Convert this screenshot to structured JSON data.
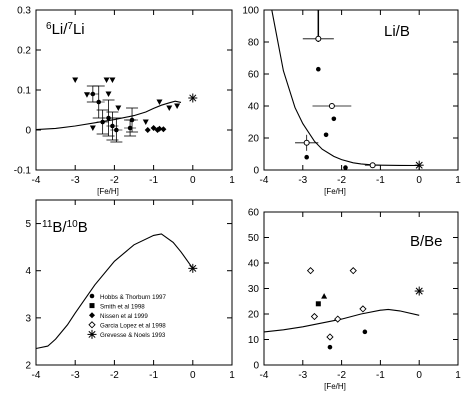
{
  "figure": {
    "background": "#ffffff",
    "ink": "#000000"
  },
  "chart_data": [
    {
      "type": "scatter",
      "id": "li6li7",
      "panel_label": "6Li/7Li",
      "label_parts": {
        "sup1": "6",
        "base1": "Li/",
        "sup2": "7",
        "base2": "Li"
      },
      "xlabel": "[Fe/H]",
      "ylabel": "",
      "xlim": [
        -4,
        1
      ],
      "ylim": [
        -0.1,
        0.3
      ],
      "xticks": [
        -4,
        -3,
        -2,
        -1,
        0,
        1
      ],
      "yticks": [
        -0.1,
        0,
        0.1,
        0.2,
        0.3
      ],
      "ytick_labels": [
        "-0.1",
        "0",
        "0.1",
        "0.2",
        "0.3"
      ],
      "grid": false,
      "curve": [
        [
          -4,
          0.001
        ],
        [
          -3.5,
          0.004
        ],
        [
          -3,
          0.01
        ],
        [
          -2.5,
          0.018
        ],
        [
          -2,
          0.026
        ],
        [
          -1.5,
          0.036
        ],
        [
          -1.2,
          0.045
        ],
        [
          -1,
          0.054
        ],
        [
          -0.8,
          0.062
        ],
        [
          -0.6,
          0.068
        ],
        [
          -0.45,
          0.072
        ],
        [
          -0.3,
          0.069
        ]
      ],
      "series": [
        {
          "marker": "triangle-down",
          "points": [
            [
              -3.0,
              0.125
            ],
            [
              -2.7,
              0.088
            ],
            [
              -2.55,
              0.005
            ],
            [
              -2.2,
              0.125
            ],
            [
              -2.15,
              0.09
            ],
            [
              -2.05,
              0.125
            ],
            [
              -1.9,
              0.055
            ],
            [
              -1.2,
              0.02
            ],
            [
              -0.85,
              0.07
            ],
            [
              -0.6,
              0.055
            ],
            [
              -0.4,
              0.06
            ]
          ]
        },
        {
          "marker": "dot-errorbar",
          "points": [
            [
              -2.55,
              0.09,
              0.02
            ],
            [
              -2.4,
              0.07,
              0.04
            ],
            [
              -2.3,
              0.02,
              0.03
            ],
            [
              -2.15,
              0.03,
              0.045
            ],
            [
              -2.05,
              0.01,
              0.035
            ],
            [
              -1.95,
              0.0,
              0.03
            ],
            [
              -1.6,
              0.005,
              0.02
            ],
            [
              -1.55,
              0.025,
              0.03
            ]
          ]
        },
        {
          "marker": "diamond",
          "points": [
            [
              -1.15,
              0.0
            ],
            [
              -1.0,
              0.005
            ],
            [
              -0.9,
              0.0
            ],
            [
              -0.85,
              0.003
            ],
            [
              -0.75,
              0.002
            ]
          ]
        },
        {
          "marker": "asterisk",
          "points": [
            [
              0.0,
              0.08
            ]
          ]
        }
      ]
    },
    {
      "type": "scatter",
      "id": "lib",
      "panel_label": "Li/B",
      "xlabel": "[Fe/H]",
      "ylabel": "",
      "xlim": [
        -4,
        1
      ],
      "ylim": [
        0,
        100
      ],
      "xticks": [
        -4,
        -3,
        -2,
        -1,
        0,
        1
      ],
      "yticks": [
        0,
        20,
        40,
        60,
        80,
        100
      ],
      "grid": false,
      "curve": [
        [
          -3.8,
          100
        ],
        [
          -3.5,
          62
        ],
        [
          -3.2,
          39
        ],
        [
          -3,
          29
        ],
        [
          -2.7,
          18
        ],
        [
          -2.5,
          13
        ],
        [
          -2.2,
          8.5
        ],
        [
          -2,
          6.5
        ],
        [
          -1.7,
          4.5
        ],
        [
          -1.5,
          3.8
        ],
        [
          -1.2,
          3.2
        ],
        [
          -1,
          3.0
        ],
        [
          -0.5,
          2.9
        ],
        [
          0,
          2.8
        ]
      ],
      "series": [
        {
          "marker": "open-circle-errorbar",
          "points": [
            [
              -2.9,
              17,
              3,
              5
            ],
            [
              -2.6,
              82,
              4,
              2
            ],
            [
              -2.25,
              40,
              5,
              1.5
            ],
            [
              -1.2,
              3,
              2,
              1
            ]
          ]
        },
        {
          "marker": "dot",
          "points": [
            [
              -2.9,
              8
            ],
            [
              -2.6,
              63
            ],
            [
              -2.4,
              22
            ],
            [
              -2.2,
              32
            ],
            [
              -1.9,
              1.5
            ]
          ]
        },
        {
          "marker": "asterisk",
          "points": [
            [
              0.0,
              3
            ]
          ]
        }
      ],
      "vertical_bar": {
        "x": -2.6,
        "y_from": 80,
        "y_to": 100
      }
    },
    {
      "type": "line",
      "id": "b11b10",
      "panel_label": "11B/10B",
      "label_parts": {
        "sup1": "11",
        "base1": "B/",
        "sup2": "10",
        "base2": "B"
      },
      "xlabel": "",
      "ylabel": "",
      "xlim": [
        -4,
        1
      ],
      "ylim": [
        2,
        5.5
      ],
      "xticks": [
        -4,
        -3,
        -2,
        -1,
        0,
        1
      ],
      "yticks": [
        2,
        3,
        4,
        5
      ],
      "grid": false,
      "curve": [
        [
          -4,
          2.35
        ],
        [
          -3.7,
          2.4
        ],
        [
          -3.5,
          2.55
        ],
        [
          -3.2,
          2.85
        ],
        [
          -3,
          3.1
        ],
        [
          -2.5,
          3.7
        ],
        [
          -2,
          4.2
        ],
        [
          -1.5,
          4.55
        ],
        [
          -1,
          4.75
        ],
        [
          -0.8,
          4.78
        ],
        [
          -0.5,
          4.6
        ],
        [
          -0.3,
          4.4
        ],
        [
          0,
          4.05
        ]
      ],
      "series": [
        {
          "marker": "asterisk",
          "points": [
            [
              0.0,
              4.05
            ]
          ]
        }
      ],
      "legend": [
        {
          "marker": "dot",
          "label": "Hobbs & Thorburn 1997"
        },
        {
          "marker": "square",
          "label": "Smith et al 1998"
        },
        {
          "marker": "diamond",
          "label": "Nissen et al 1999"
        },
        {
          "marker": "open-diamond",
          "label": "Garcia Lopez et al 1998"
        },
        {
          "marker": "asterisk",
          "label": "Grevesse & Noels 1993"
        }
      ],
      "legend_position": "center-right"
    },
    {
      "type": "scatter",
      "id": "bbe",
      "panel_label": "B/Be",
      "xlabel": "[Fe/H]",
      "ylabel": "",
      "xlim": [
        -4,
        1
      ],
      "ylim": [
        0,
        60
      ],
      "xticks": [
        -4,
        -3,
        -2,
        -1,
        0,
        1
      ],
      "yticks": [
        0,
        10,
        20,
        30,
        40,
        50,
        60
      ],
      "grid": false,
      "curve": [
        [
          -4,
          13
        ],
        [
          -3.5,
          13.8
        ],
        [
          -3,
          15
        ],
        [
          -2.5,
          16.5
        ],
        [
          -2,
          18
        ],
        [
          -1.5,
          20
        ],
        [
          -1,
          21.5
        ],
        [
          -0.8,
          21.8
        ],
        [
          -0.5,
          21.2
        ],
        [
          0,
          19.5
        ]
      ],
      "series": [
        {
          "marker": "open-diamond",
          "points": [
            [
              -2.8,
              37
            ],
            [
              -2.7,
              19
            ],
            [
              -2.1,
              18
            ],
            [
              -1.7,
              37
            ],
            [
              -1.45,
              22
            ],
            [
              -2.3,
              11
            ]
          ]
        },
        {
          "marker": "square",
          "points": [
            [
              -2.6,
              24
            ]
          ]
        },
        {
          "marker": "triangle",
          "points": [
            [
              -2.45,
              27
            ]
          ]
        },
        {
          "marker": "dot",
          "points": [
            [
              -2.3,
              7
            ],
            [
              -1.4,
              13
            ]
          ]
        },
        {
          "marker": "asterisk",
          "points": [
            [
              0.0,
              29
            ]
          ]
        }
      ]
    }
  ]
}
